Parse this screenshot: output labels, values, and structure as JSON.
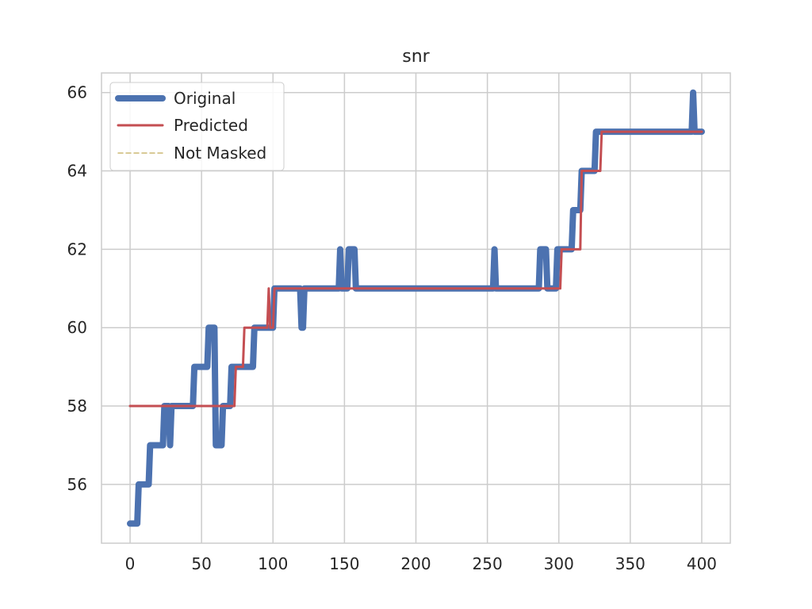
{
  "chart_data": {
    "type": "line",
    "title": "snr",
    "xlabel": "",
    "ylabel": "",
    "xlim": [
      -20,
      420
    ],
    "ylim": [
      54.5,
      66.5
    ],
    "xticks": [
      0,
      50,
      100,
      150,
      200,
      250,
      300,
      350,
      400
    ],
    "yticks": [
      56,
      58,
      60,
      62,
      64,
      66
    ],
    "grid": true,
    "legend": {
      "position": "top-left"
    },
    "series": [
      {
        "name": "Original",
        "color": "#4c72b0",
        "style": "thick",
        "points": [
          [
            0,
            55
          ],
          [
            5,
            55
          ],
          [
            6,
            56
          ],
          [
            13,
            56
          ],
          [
            14,
            57
          ],
          [
            23,
            57
          ],
          [
            24,
            58
          ],
          [
            27,
            58
          ],
          [
            28,
            57
          ],
          [
            29,
            58
          ],
          [
            44,
            58
          ],
          [
            45,
            59
          ],
          [
            54,
            59
          ],
          [
            55,
            60
          ],
          [
            59,
            60
          ],
          [
            60,
            57
          ],
          [
            64,
            57
          ],
          [
            65,
            58
          ],
          [
            70,
            58
          ],
          [
            71,
            59
          ],
          [
            86,
            59
          ],
          [
            87,
            60
          ],
          [
            100,
            60
          ],
          [
            101,
            61
          ],
          [
            119,
            61
          ],
          [
            120,
            60
          ],
          [
            121,
            60
          ],
          [
            122,
            61
          ],
          [
            146,
            61
          ],
          [
            147,
            62
          ],
          [
            148,
            61
          ],
          [
            152,
            61
          ],
          [
            153,
            62
          ],
          [
            157,
            62
          ],
          [
            158,
            61
          ],
          [
            254,
            61
          ],
          [
            255,
            62
          ],
          [
            256,
            61
          ],
          [
            286,
            61
          ],
          [
            287,
            62
          ],
          [
            291,
            62
          ],
          [
            292,
            61
          ],
          [
            298,
            61
          ],
          [
            299,
            62
          ],
          [
            309,
            62
          ],
          [
            310,
            63
          ],
          [
            315,
            63
          ],
          [
            316,
            64
          ],
          [
            325,
            64
          ],
          [
            326,
            65
          ],
          [
            393,
            65
          ],
          [
            394,
            66
          ],
          [
            395,
            65
          ],
          [
            400,
            65
          ]
        ]
      },
      {
        "name": "Predicted",
        "color": "#c44e52",
        "style": "medium",
        "points": [
          [
            0,
            58
          ],
          [
            73,
            58
          ],
          [
            74,
            59
          ],
          [
            79,
            59
          ],
          [
            80,
            60
          ],
          [
            96,
            60
          ],
          [
            97,
            61
          ],
          [
            98,
            60
          ],
          [
            100,
            60
          ],
          [
            101,
            61
          ],
          [
            301,
            61
          ],
          [
            302,
            62
          ],
          [
            315,
            62
          ],
          [
            316,
            64
          ],
          [
            329,
            64
          ],
          [
            330,
            65
          ],
          [
            400,
            65
          ]
        ]
      },
      {
        "name": "Not Masked",
        "color": "#ccb974",
        "style": "dashed",
        "points": []
      }
    ]
  }
}
